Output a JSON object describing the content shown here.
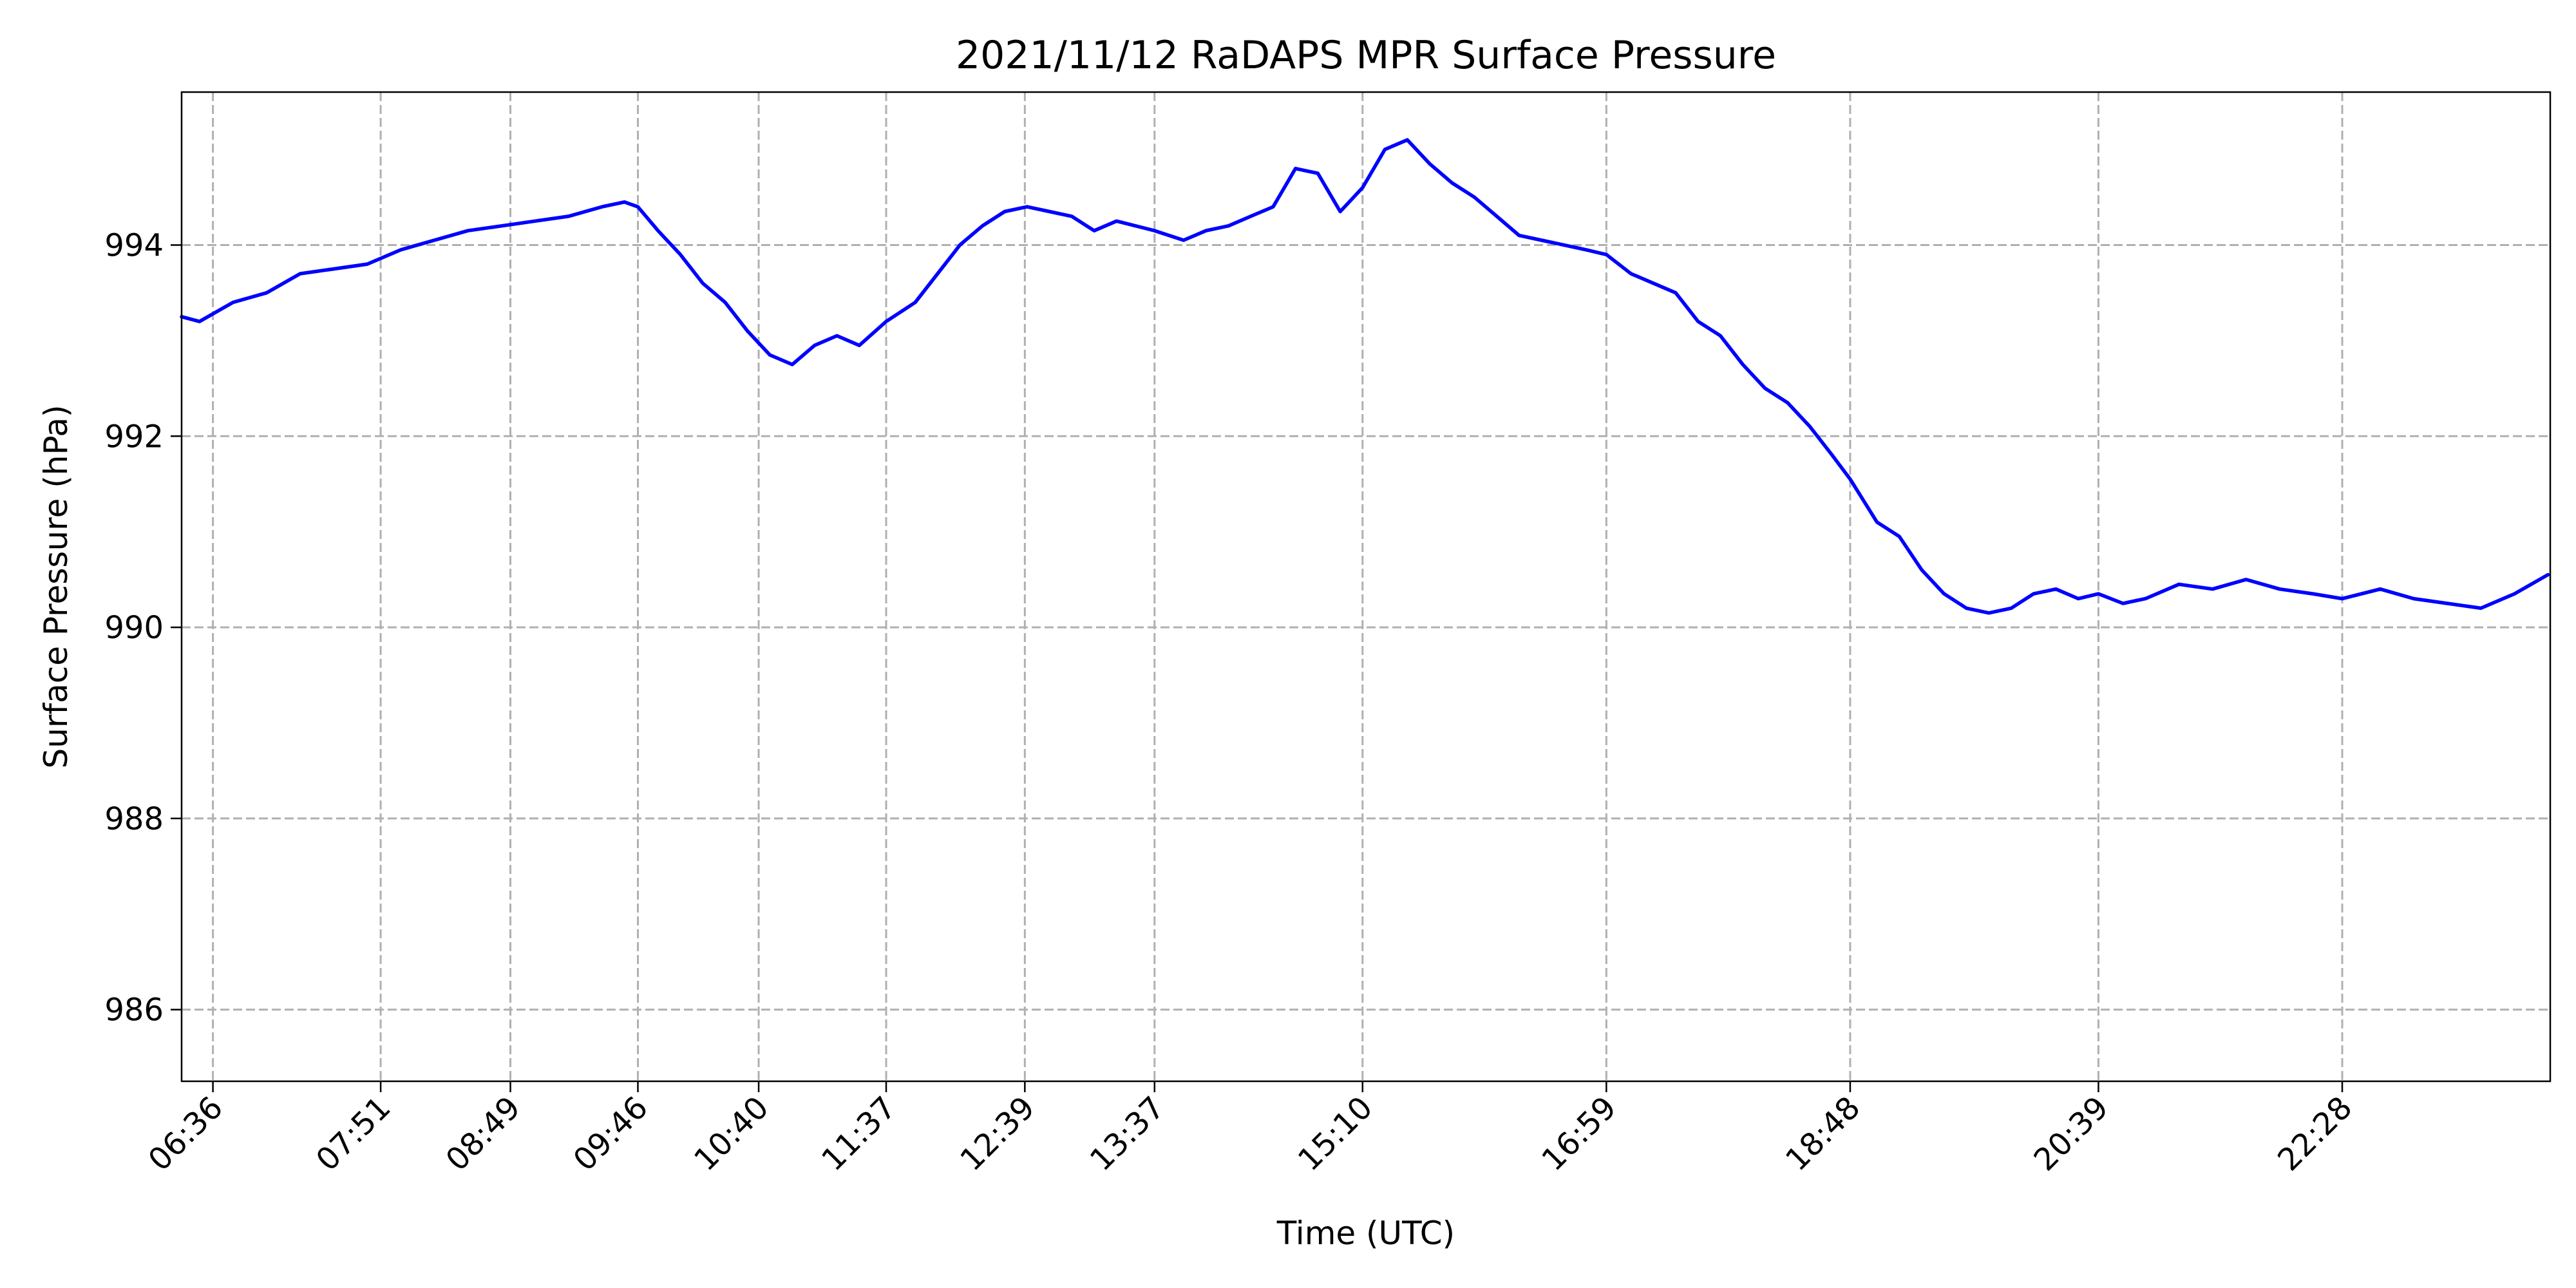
{
  "chart_data": {
    "type": "line",
    "title": "2021/11/12 RaDAPS MPR Surface Pressure",
    "xlabel": "Time (UTC)",
    "ylabel": "Surface Pressure (hPa)",
    "grid": true,
    "xlim": [
      "06:22",
      "24:01"
    ],
    "ylim": [
      985.25,
      995.6
    ],
    "x_ticks": [
      "06:36",
      "07:51",
      "08:49",
      "09:46",
      "10:40",
      "11:37",
      "12:39",
      "13:37",
      "15:10",
      "16:59",
      "18:48",
      "20:39",
      "22:28"
    ],
    "y_ticks": [
      986,
      988,
      990,
      992,
      994
    ],
    "series": [
      {
        "color": "#0000ff",
        "x": [
          "06:22",
          "06:30",
          "06:45",
          "07:00",
          "07:15",
          "07:30",
          "07:45",
          "08:00",
          "08:15",
          "08:30",
          "08:45",
          "09:00",
          "09:15",
          "09:30",
          "09:40",
          "09:46",
          "09:55",
          "10:05",
          "10:15",
          "10:25",
          "10:35",
          "10:45",
          "10:55",
          "11:05",
          "11:15",
          "11:25",
          "11:37",
          "11:50",
          "12:00",
          "12:10",
          "12:20",
          "12:30",
          "12:40",
          "12:50",
          "13:00",
          "13:10",
          "13:20",
          "13:37",
          "13:50",
          "14:00",
          "14:10",
          "14:20",
          "14:30",
          "14:40",
          "14:50",
          "15:00",
          "15:10",
          "15:20",
          "15:30",
          "15:40",
          "15:50",
          "16:00",
          "16:10",
          "16:20",
          "16:30",
          "16:40",
          "16:50",
          "16:59",
          "17:10",
          "17:20",
          "17:30",
          "17:40",
          "17:50",
          "18:00",
          "18:10",
          "18:20",
          "18:30",
          "18:40",
          "18:48",
          "19:00",
          "19:10",
          "19:20",
          "19:30",
          "19:40",
          "19:50",
          "20:00",
          "20:10",
          "20:20",
          "20:30",
          "20:39",
          "20:50",
          "21:00",
          "21:15",
          "21:30",
          "21:45",
          "22:00",
          "22:15",
          "22:28",
          "22:45",
          "23:00",
          "23:15",
          "23:30",
          "23:45",
          "24:00"
        ],
        "y": [
          993.25,
          993.2,
          993.4,
          993.5,
          993.7,
          993.75,
          993.8,
          993.95,
          994.05,
          994.15,
          994.2,
          994.25,
          994.3,
          994.4,
          994.45,
          994.4,
          994.15,
          993.9,
          993.6,
          993.4,
          993.1,
          992.85,
          992.75,
          992.95,
          993.05,
          992.95,
          993.2,
          993.4,
          993.7,
          994.0,
          994.2,
          994.35,
          994.4,
          994.35,
          994.3,
          994.15,
          994.25,
          994.15,
          994.05,
          994.15,
          994.2,
          994.3,
          994.4,
          994.8,
          994.75,
          994.35,
          994.6,
          995.0,
          995.1,
          994.85,
          994.65,
          994.5,
          994.3,
          994.1,
          994.05,
          994.0,
          993.95,
          993.9,
          993.7,
          993.6,
          993.5,
          993.2,
          993.05,
          992.75,
          992.5,
          992.35,
          992.1,
          991.8,
          991.55,
          991.1,
          990.95,
          990.6,
          990.35,
          990.2,
          990.15,
          990.2,
          990.35,
          990.4,
          990.3,
          990.35,
          990.25,
          990.3,
          990.45,
          990.4,
          990.5,
          990.4,
          990.35,
          990.3,
          990.4,
          990.3,
          990.25,
          990.2,
          990.35,
          990.55
        ]
      }
    ]
  }
}
